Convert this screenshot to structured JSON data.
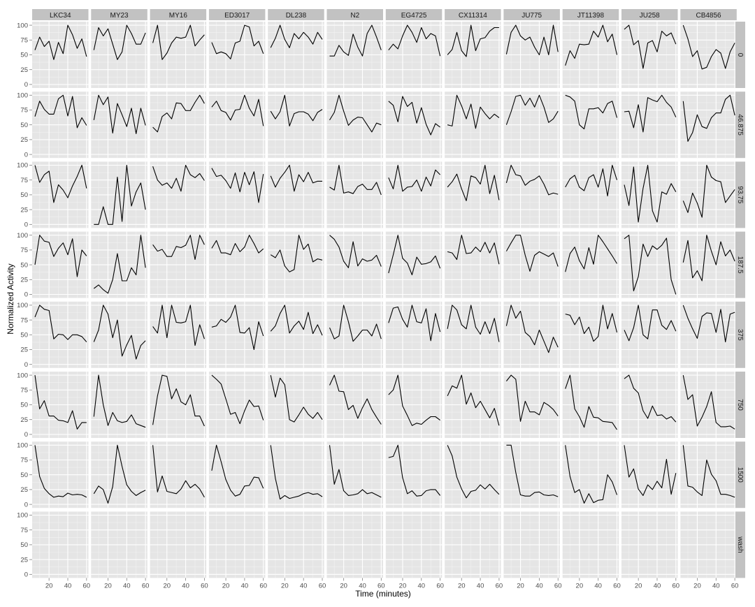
{
  "chart_data": {
    "type": "line",
    "kind": "faceted-line-grid",
    "xlabel": "Time (minutes)",
    "ylabel": "Normalized Activity",
    "xlim": [
      2,
      62
    ],
    "ylim": [
      -6,
      106
    ],
    "xticks": [
      20,
      40,
      60
    ],
    "yticks": [
      0,
      25,
      50,
      75,
      100
    ],
    "grid": true,
    "x": [
      5,
      10,
      15,
      20,
      25,
      30,
      35,
      40,
      45,
      50,
      55,
      60
    ],
    "column_facets": [
      "LKC34",
      "MY23",
      "MY16",
      "ED3017",
      "DL238",
      "N2",
      "EG4725",
      "CX11314",
      "JU775",
      "JT11398",
      "JU258",
      "CB4856"
    ],
    "row_facets": [
      "0",
      "46.875",
      "93.75",
      "187.5",
      "375",
      "750",
      "1500",
      "wash"
    ],
    "panels": [
      [
        [
          58,
          80,
          64,
          73,
          42,
          71,
          52,
          100,
          84,
          61,
          77,
          47
        ],
        [
          58,
          96,
          82,
          94,
          68,
          42,
          55,
          100,
          86,
          68,
          68,
          87
        ],
        [
          70,
          100,
          42,
          53,
          70,
          80,
          78,
          80,
          100,
          65,
          75,
          84
        ],
        [
          71,
          52,
          55,
          52,
          43,
          70,
          73,
          100,
          97,
          65,
          73,
          52
        ],
        [
          62,
          78,
          100,
          76,
          62,
          86,
          77,
          88,
          80,
          68,
          88,
          76
        ],
        [
          48,
          48,
          66,
          55,
          49,
          85,
          63,
          48,
          86,
          100,
          80,
          58
        ],
        [
          58,
          68,
          60,
          82,
          100,
          88,
          71,
          96,
          77,
          86,
          82,
          48
        ],
        [
          50,
          59,
          88,
          57,
          47,
          100,
          57,
          77,
          79,
          90,
          96,
          96
        ],
        [
          51,
          88,
          100,
          82,
          75,
          80,
          63,
          50,
          80,
          50,
          100,
          55
        ],
        [
          32,
          57,
          44,
          68,
          67,
          68,
          90,
          80,
          100,
          72,
          85,
          50
        ],
        [
          93,
          100,
          67,
          74,
          27,
          70,
          74,
          55,
          90,
          82,
          87,
          68
        ],
        [
          100,
          77,
          47,
          57,
          26,
          29,
          47,
          59,
          53,
          27,
          55,
          70
        ]
      ],
      [
        [
          64,
          90,
          76,
          68,
          68,
          94,
          100,
          65,
          98,
          45,
          62,
          49
        ],
        [
          58,
          100,
          84,
          97,
          36,
          86,
          67,
          47,
          78,
          35,
          78,
          49
        ],
        [
          46,
          38,
          64,
          70,
          60,
          87,
          86,
          74,
          74,
          88,
          100,
          86
        ],
        [
          80,
          90,
          74,
          71,
          58,
          75,
          76,
          100,
          78,
          65,
          93,
          48
        ],
        [
          73,
          60,
          72,
          100,
          48,
          69,
          72,
          72,
          68,
          57,
          71,
          76
        ],
        [
          58,
          71,
          100,
          73,
          49,
          58,
          63,
          62,
          50,
          38,
          53,
          50
        ],
        [
          90,
          83,
          55,
          98,
          81,
          88,
          53,
          79,
          51,
          33,
          52,
          46
        ],
        [
          50,
          48,
          100,
          82,
          60,
          85,
          44,
          80,
          69,
          60,
          68,
          62
        ],
        [
          50,
          72,
          98,
          100,
          83,
          95,
          80,
          100,
          80,
          54,
          60,
          73
        ],
        [
          100,
          97,
          90,
          50,
          43,
          77,
          77,
          79,
          70,
          86,
          90,
          62
        ],
        [
          72,
          73,
          45,
          84,
          38,
          96,
          92,
          89,
          100,
          88,
          80,
          63
        ],
        [
          90,
          22,
          37,
          67,
          47,
          44,
          62,
          70,
          70,
          93,
          100,
          66
        ]
      ],
      [
        [
          100,
          71,
          84,
          90,
          37,
          67,
          58,
          45,
          65,
          81,
          100,
          61
        ],
        [
          0,
          0,
          30,
          0,
          0,
          80,
          5,
          100,
          31,
          55,
          70,
          25
        ],
        [
          98,
          75,
          66,
          70,
          61,
          78,
          56,
          100,
          84,
          79,
          86,
          74
        ],
        [
          95,
          81,
          83,
          74,
          61,
          87,
          55,
          88,
          67,
          89,
          37,
          85
        ],
        [
          82,
          63,
          78,
          88,
          100,
          56,
          84,
          72,
          88,
          70,
          73,
          73
        ],
        [
          63,
          58,
          100,
          53,
          55,
          52,
          64,
          68,
          59,
          59,
          71,
          50
        ],
        [
          79,
          60,
          100,
          56,
          63,
          64,
          75,
          56,
          80,
          65,
          92,
          84
        ],
        [
          63,
          72,
          85,
          60,
          40,
          82,
          79,
          68,
          100,
          52,
          83,
          41
        ],
        [
          70,
          100,
          84,
          82,
          66,
          73,
          76,
          82,
          68,
          50,
          53,
          51
        ],
        [
          63,
          77,
          83,
          63,
          57,
          79,
          84,
          63,
          94,
          48,
          100,
          75
        ],
        [
          67,
          32,
          97,
          4,
          61,
          100,
          23,
          4,
          55,
          51,
          69,
          55
        ],
        [
          40,
          20,
          53,
          36,
          12,
          100,
          80,
          74,
          72,
          37,
          48,
          59
        ]
      ],
      [
        [
          50,
          100,
          90,
          88,
          64,
          78,
          87,
          67,
          94,
          30,
          75,
          65
        ],
        [
          10,
          16,
          8,
          2,
          25,
          69,
          23,
          23,
          45,
          33,
          100,
          45
        ],
        [
          84,
          73,
          76,
          64,
          64,
          81,
          79,
          83,
          100,
          59,
          100,
          84
        ],
        [
          78,
          91,
          70,
          70,
          67,
          86,
          72,
          80,
          100,
          86,
          70,
          77
        ],
        [
          67,
          62,
          75,
          48,
          38,
          42,
          100,
          76,
          85,
          55,
          60,
          58
        ],
        [
          100,
          93,
          80,
          56,
          45,
          89,
          48,
          60,
          56,
          58,
          66,
          47
        ],
        [
          36,
          67,
          100,
          61,
          53,
          33,
          63,
          51,
          52,
          55,
          65,
          44
        ],
        [
          72,
          70,
          59,
          100,
          69,
          70,
          80,
          72,
          88,
          70,
          87,
          51
        ],
        [
          73,
          87,
          100,
          100,
          66,
          39,
          66,
          72,
          68,
          64,
          70,
          47
        ],
        [
          38,
          69,
          80,
          57,
          43,
          79,
          51,
          100,
          89,
          77,
          65,
          52
        ],
        [
          94,
          100,
          6,
          30,
          85,
          64,
          82,
          76,
          83,
          95,
          25,
          0
        ],
        [
          54,
          91,
          28,
          40,
          23,
          100,
          73,
          50,
          89,
          65,
          75,
          56
        ]
      ],
      [
        [
          80,
          100,
          93,
          91,
          43,
          51,
          50,
          42,
          50,
          50,
          47,
          38
        ],
        [
          38,
          58,
          100,
          85,
          45,
          75,
          14,
          33,
          49,
          9,
          32,
          40
        ],
        [
          64,
          53,
          100,
          45,
          100,
          71,
          70,
          72,
          100,
          32,
          67,
          43
        ],
        [
          63,
          65,
          76,
          71,
          80,
          100,
          54,
          53,
          62,
          25,
          72,
          48
        ],
        [
          56,
          65,
          86,
          100,
          53,
          65,
          73,
          59,
          88,
          52,
          67,
          49
        ],
        [
          62,
          43,
          48,
          100,
          72,
          39,
          48,
          58,
          58,
          48,
          68,
          43
        ],
        [
          70,
          95,
          97,
          76,
          63,
          100,
          72,
          70,
          94,
          40,
          86,
          55
        ],
        [
          60,
          100,
          92,
          67,
          60,
          100,
          63,
          51,
          72,
          52,
          78,
          38
        ],
        [
          65,
          100,
          78,
          90,
          54,
          47,
          33,
          58,
          39,
          20,
          46,
          29
        ],
        [
          85,
          83,
          67,
          80,
          52,
          63,
          39,
          47,
          100,
          60,
          86,
          54
        ],
        [
          58,
          40,
          62,
          100,
          50,
          43,
          92,
          92,
          66,
          59,
          74,
          56
        ],
        [
          100,
          78,
          60,
          44,
          81,
          87,
          86,
          54,
          93,
          38,
          85,
          88
        ]
      ],
      [
        [
          100,
          43,
          57,
          31,
          31,
          24,
          23,
          20,
          40,
          9,
          20,
          20
        ],
        [
          30,
          100,
          50,
          15,
          37,
          23,
          20,
          22,
          33,
          18,
          15,
          12
        ],
        [
          16,
          65,
          100,
          98,
          60,
          77,
          55,
          50,
          67,
          31,
          31,
          14
        ],
        [
          100,
          93,
          85,
          60,
          34,
          37,
          18,
          40,
          58,
          47,
          48,
          24
        ],
        [
          100,
          63,
          95,
          84,
          25,
          21,
          33,
          46,
          34,
          27,
          37,
          25
        ],
        [
          83,
          100,
          73,
          72,
          42,
          49,
          27,
          45,
          60,
          42,
          29,
          17
        ],
        [
          67,
          75,
          100,
          48,
          32,
          15,
          19,
          17,
          24,
          30,
          30,
          24
        ],
        [
          65,
          82,
          78,
          100,
          51,
          70,
          45,
          56,
          42,
          28,
          44,
          15
        ],
        [
          90,
          100,
          93,
          22,
          56,
          38,
          38,
          33,
          54,
          49,
          42,
          31
        ],
        [
          77,
          100,
          43,
          30,
          12,
          47,
          29,
          28,
          22,
          21,
          20,
          8
        ],
        [
          94,
          100,
          78,
          70,
          40,
          27,
          48,
          32,
          33,
          26,
          30,
          21
        ],
        [
          100,
          59,
          67,
          14,
          29,
          47,
          72,
          20,
          13,
          13,
          14,
          9
        ]
      ],
      [
        [
          100,
          47,
          27,
          18,
          12,
          14,
          13,
          19,
          16,
          17,
          16,
          12
        ],
        [
          18,
          31,
          25,
          2,
          30,
          100,
          64,
          33,
          22,
          15,
          20,
          24
        ],
        [
          100,
          21,
          48,
          22,
          20,
          18,
          26,
          40,
          28,
          34,
          26,
          12
        ],
        [
          57,
          100,
          72,
          42,
          24,
          14,
          17,
          31,
          32,
          46,
          45,
          27
        ],
        [
          100,
          44,
          9,
          15,
          10,
          12,
          14,
          18,
          20,
          17,
          18,
          13
        ],
        [
          100,
          34,
          59,
          23,
          15,
          16,
          18,
          25,
          18,
          20,
          16,
          12
        ],
        [
          79,
          81,
          100,
          45,
          18,
          23,
          14,
          15,
          23,
          25,
          25,
          15
        ],
        [
          100,
          82,
          46,
          26,
          11,
          22,
          24,
          33,
          26,
          34,
          25,
          17
        ],
        [
          100,
          100,
          54,
          16,
          14,
          14,
          20,
          21,
          16,
          15,
          16,
          13
        ],
        [
          100,
          47,
          20,
          25,
          2,
          18,
          3,
          7,
          8,
          50,
          38,
          16
        ],
        [
          100,
          46,
          60,
          26,
          15,
          33,
          25,
          39,
          28,
          76,
          17,
          53
        ],
        [
          100,
          31,
          29,
          21,
          15,
          75,
          51,
          40,
          17,
          17,
          15,
          12
        ]
      ],
      [
        [],
        [],
        [],
        [],
        [],
        [],
        [],
        [],
        [],
        [],
        [],
        []
      ]
    ]
  }
}
